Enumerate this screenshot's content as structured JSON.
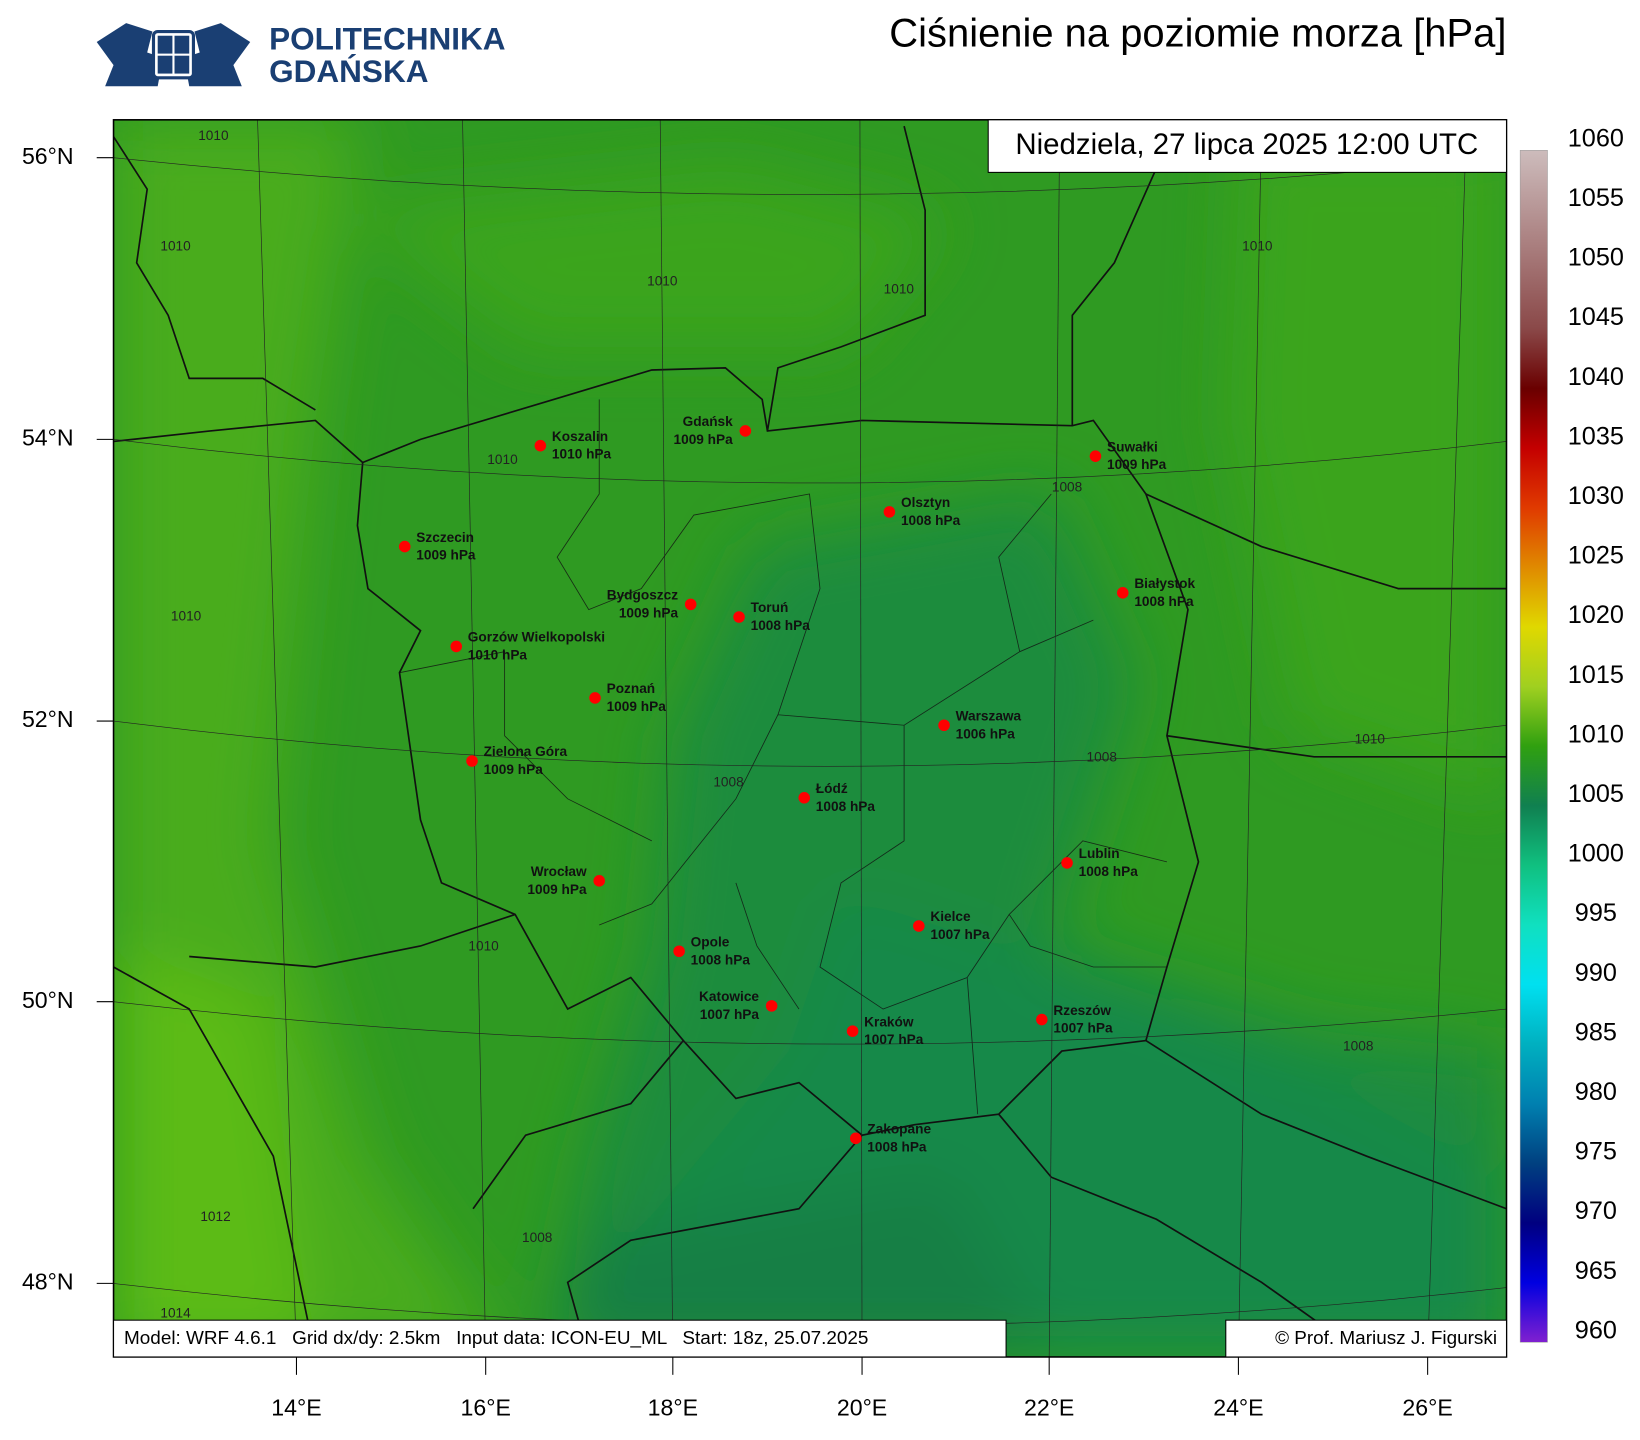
{
  "header": {
    "logo": [
      "POLITECHNIKA",
      "GDAŃSKA"
    ],
    "title": "Ciśnienie na poziomie morza [hPa]",
    "valid_time": "Niedziela, 27 lipca 2025 12:00 UTC"
  },
  "map": {
    "lat_labels": [
      "56°N",
      "54°N",
      "52°N",
      "50°N",
      "48°N"
    ],
    "lon_labels": [
      "14°E",
      "16°E",
      "18°E",
      "20°E",
      "22°E",
      "24°E",
      "26°E"
    ],
    "cities": [
      {
        "name": "Koszalin",
        "pressure": "1010 hPa"
      },
      {
        "name": "Gdańsk",
        "pressure": "1009 hPa"
      },
      {
        "name": "Suwałki",
        "pressure": "1009 hPa"
      },
      {
        "name": "Szczecin",
        "pressure": "1009 hPa"
      },
      {
        "name": "Olsztyn",
        "pressure": "1008 hPa"
      },
      {
        "name": "Białystok",
        "pressure": "1008 hPa"
      },
      {
        "name": "Bydgoszcz",
        "pressure": "1009 hPa"
      },
      {
        "name": "Toruń",
        "pressure": "1008 hPa"
      },
      {
        "name": "Gorzów Wielkopolski",
        "pressure": "1010 hPa"
      },
      {
        "name": "Poznań",
        "pressure": "1009 hPa"
      },
      {
        "name": "Warszawa",
        "pressure": "1006 hPa"
      },
      {
        "name": "Zielona Góra",
        "pressure": "1009 hPa"
      },
      {
        "name": "Łódź",
        "pressure": "1008 hPa"
      },
      {
        "name": "Lublin",
        "pressure": "1008 hPa"
      },
      {
        "name": "Wrocław",
        "pressure": "1009 hPa"
      },
      {
        "name": "Kielce",
        "pressure": "1007 hPa"
      },
      {
        "name": "Opole",
        "pressure": "1008 hPa"
      },
      {
        "name": "Katowice",
        "pressure": "1007 hPa"
      },
      {
        "name": "Kraków",
        "pressure": "1007 hPa"
      },
      {
        "name": "Rzeszów",
        "pressure": "1007 hPa"
      },
      {
        "name": "Zakopane",
        "pressure": "1008 hPa"
      }
    ],
    "contour_labels": [
      "1010",
      "1010",
      "1010",
      "1010",
      "1010",
      "1010",
      "1008",
      "1010",
      "1008",
      "1008",
      "1010",
      "1010",
      "1008",
      "1012",
      "1008",
      "1014"
    ]
  },
  "colorbar": {
    "ticks": [
      960,
      965,
      970,
      975,
      980,
      985,
      990,
      995,
      1000,
      1005,
      1010,
      1015,
      1020,
      1025,
      1030,
      1035,
      1040,
      1045,
      1050,
      1055,
      1060
    ]
  },
  "footer": {
    "run_info": "Model: WRF 4.6.1   Grid dx/dy: 2.5km   Input data: ICON-EU_ML   Start: 18z, 25.07.2025",
    "copyright": "© Prof. Mariusz J. Figurski"
  }
}
